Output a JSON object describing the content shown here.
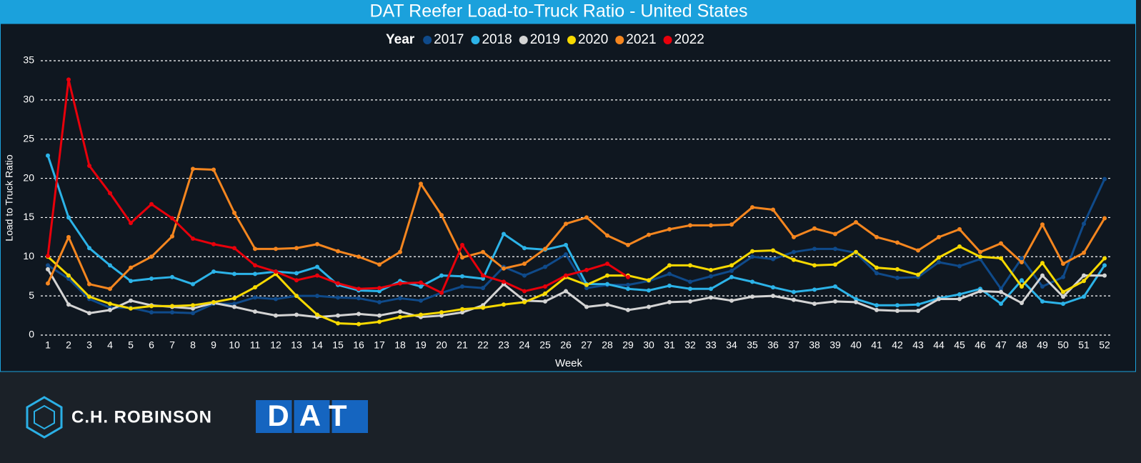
{
  "chart_data": {
    "type": "line",
    "title": "DAT Reefer Load-to-Truck Ratio - United States",
    "legend_title": "Year",
    "x_label": "Week",
    "y_label": "Load to Truck Ratio",
    "categories": [
      "1",
      "2",
      "3",
      "4",
      "5",
      "6",
      "7",
      "8",
      "9",
      "10",
      "11",
      "12",
      "13",
      "14",
      "15",
      "16",
      "17",
      "18",
      "19",
      "20",
      "21",
      "22",
      "23",
      "24",
      "25",
      "26",
      "27",
      "28",
      "29",
      "30",
      "31",
      "32",
      "33",
      "34",
      "35",
      "36",
      "37",
      "38",
      "39",
      "40",
      "41",
      "42",
      "43",
      "44",
      "45",
      "46",
      "47",
      "48",
      "49",
      "50",
      "51",
      "52"
    ],
    "ylim": [
      0,
      35
    ],
    "yticks": [
      0,
      5,
      10,
      15,
      20,
      25,
      30,
      35
    ],
    "grid": true,
    "series": [
      {
        "name": "2017",
        "color": "#0f4a8a",
        "values": [
          8.9,
          7.2,
          4.6,
          3.5,
          3.5,
          2.9,
          2.9,
          2.8,
          4.0,
          4.0,
          4.8,
          4.6,
          5.0,
          5.0,
          4.8,
          4.7,
          4.2,
          4.7,
          4.4,
          5.4,
          6.2,
          6.0,
          8.7,
          7.6,
          8.7,
          10.3,
          6.0,
          6.4,
          6.4,
          6.9,
          7.8,
          6.8,
          7.5,
          8.2,
          10.0,
          9.7,
          10.6,
          11.0,
          11.0,
          10.5,
          7.9,
          7.3,
          7.4,
          9.3,
          8.8,
          9.7,
          5.9,
          9.8,
          6.2,
          7.4,
          14.2,
          19.9
        ]
      },
      {
        "name": "2018",
        "color": "#2cb3e8",
        "values": [
          22.9,
          15.0,
          11.1,
          8.9,
          6.9,
          7.2,
          7.4,
          6.5,
          8.1,
          7.8,
          7.8,
          8.1,
          7.9,
          8.7,
          6.4,
          5.7,
          5.6,
          6.9,
          6.2,
          7.6,
          7.5,
          7.2,
          12.9,
          11.1,
          10.9,
          11.5,
          6.5,
          6.5,
          5.9,
          5.7,
          6.3,
          5.9,
          5.9,
          7.4,
          6.8,
          6.1,
          5.5,
          5.8,
          6.2,
          4.6,
          3.8,
          3.8,
          3.9,
          4.7,
          5.2,
          5.9,
          4.0,
          7.0,
          4.3,
          4.0,
          4.9,
          8.9
        ]
      },
      {
        "name": "2019",
        "color": "#d4d4d4",
        "values": [
          8.4,
          3.9,
          2.8,
          3.2,
          4.4,
          3.8,
          3.6,
          3.4,
          4.1,
          3.6,
          3.0,
          2.5,
          2.6,
          2.3,
          2.5,
          2.7,
          2.5,
          3.0,
          2.3,
          2.5,
          2.9,
          3.8,
          6.5,
          4.4,
          4.3,
          5.6,
          3.6,
          3.9,
          3.2,
          3.6,
          4.2,
          4.3,
          4.8,
          4.4,
          4.9,
          5.0,
          4.5,
          4.0,
          4.3,
          4.2,
          3.2,
          3.1,
          3.1,
          4.6,
          4.6,
          5.6,
          5.5,
          4.1,
          7.6,
          4.9,
          7.6,
          7.6
        ]
      },
      {
        "name": "2020",
        "color": "#f7d900",
        "values": [
          10.0,
          7.6,
          4.9,
          4.0,
          3.4,
          3.7,
          3.7,
          3.8,
          4.2,
          4.7,
          6.1,
          7.8,
          5.0,
          2.6,
          1.5,
          1.4,
          1.7,
          2.3,
          2.6,
          2.9,
          3.3,
          3.5,
          3.9,
          4.2,
          5.3,
          7.4,
          6.4,
          7.6,
          7.6,
          7.0,
          8.9,
          8.9,
          8.3,
          8.9,
          10.7,
          10.8,
          9.6,
          8.9,
          9.0,
          10.6,
          8.6,
          8.4,
          7.7,
          9.9,
          11.3,
          10.0,
          9.8,
          6.2,
          9.2,
          5.5,
          6.9,
          9.8
        ]
      },
      {
        "name": "2021",
        "color": "#f5861f",
        "values": [
          6.6,
          12.5,
          6.5,
          5.9,
          8.6,
          10.0,
          12.6,
          21.2,
          21.1,
          15.6,
          11.0,
          11.0,
          11.1,
          11.6,
          10.7,
          10.0,
          9.0,
          10.6,
          19.3,
          15.3,
          9.9,
          10.6,
          8.5,
          9.1,
          11.0,
          14.2,
          15.0,
          12.7,
          11.5,
          12.8,
          13.5,
          14.0,
          14.0,
          14.1,
          16.3,
          16.0,
          12.5,
          13.6,
          12.9,
          14.4,
          12.5,
          11.8,
          10.8,
          12.5,
          13.5,
          10.6,
          11.7,
          9.3,
          14.1,
          9.1,
          10.5,
          14.9
        ]
      },
      {
        "name": "2022",
        "color": "#e8000b",
        "values": [
          10.1,
          32.6,
          21.6,
          18.1,
          14.3,
          16.7,
          14.9,
          12.3,
          11.6,
          11.1,
          8.9,
          8.1,
          7.0,
          7.6,
          6.6,
          5.9,
          6.0,
          6.6,
          6.7,
          5.4,
          11.5,
          7.6,
          6.8,
          5.6,
          6.2,
          7.6,
          8.3,
          9.1,
          7.4,
          null,
          null,
          null,
          null,
          null,
          null,
          null,
          null,
          null,
          null,
          null,
          null,
          null,
          null,
          null,
          null,
          null,
          null,
          null,
          null,
          null,
          null,
          null
        ]
      }
    ]
  },
  "footer": {
    "logos": [
      "C.H. ROBINSON",
      "DAT"
    ]
  }
}
